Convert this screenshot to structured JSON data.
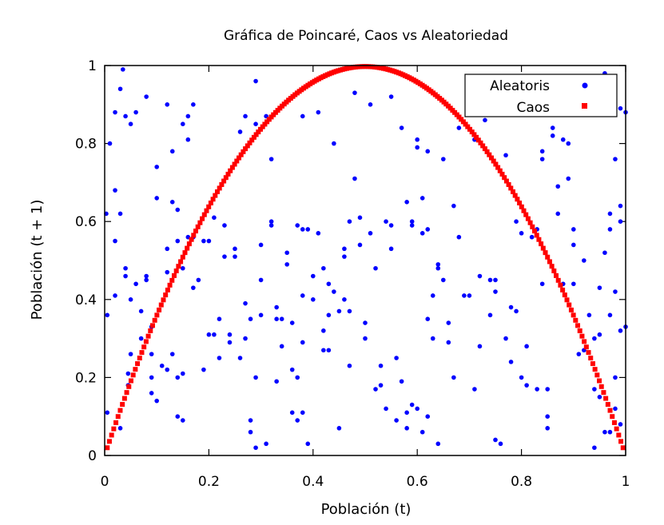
{
  "chart_data": {
    "type": "scatter",
    "title": "Gráfica de Poincaré, Caos vs Aleatoriedad",
    "xlabel": "Población (t)",
    "ylabel": "Población (t + 1)",
    "xlim": [
      0,
      1
    ],
    "ylim": [
      0,
      1
    ],
    "x_ticks": [
      "0",
      "0.2",
      "0.4",
      "0.6",
      "0.8",
      "1"
    ],
    "y_ticks": [
      "0",
      "0.2",
      "0.4",
      "0.6",
      "0.8",
      "1"
    ],
    "grid": false,
    "legend_position": "top-right",
    "series": [
      {
        "name": "Aleatoris",
        "color": "#0000ff",
        "marker": "circle",
        "points": [
          [
            0.003,
            0.62
          ],
          [
            0.005,
            0.36
          ],
          [
            0.005,
            0.11
          ],
          [
            0.01,
            0.8
          ],
          [
            0.02,
            0.88
          ],
          [
            0.02,
            0.68
          ],
          [
            0.02,
            0.55
          ],
          [
            0.02,
            0.41
          ],
          [
            0.03,
            0.94
          ],
          [
            0.03,
            0.62
          ],
          [
            0.03,
            0.07
          ],
          [
            0.035,
            0.99
          ],
          [
            0.04,
            0.87
          ],
          [
            0.04,
            0.48
          ],
          [
            0.04,
            0.46
          ],
          [
            0.045,
            0.18
          ],
          [
            0.045,
            0.21
          ],
          [
            0.05,
            0.26
          ],
          [
            0.05,
            0.85
          ],
          [
            0.05,
            0.4
          ],
          [
            0.06,
            0.44
          ],
          [
            0.06,
            0.88
          ],
          [
            0.07,
            0.37
          ],
          [
            0.07,
            0.3
          ],
          [
            0.08,
            0.92
          ],
          [
            0.08,
            0.46
          ],
          [
            0.08,
            0.45
          ],
          [
            0.09,
            0.2
          ],
          [
            0.09,
            0.26
          ],
          [
            0.09,
            0.16
          ],
          [
            0.09,
            0.33
          ],
          [
            0.1,
            0.66
          ],
          [
            0.1,
            0.74
          ],
          [
            0.1,
            0.14
          ],
          [
            0.11,
            0.23
          ],
          [
            0.12,
            0.47
          ],
          [
            0.12,
            0.53
          ],
          [
            0.12,
            0.9
          ],
          [
            0.12,
            0.22
          ],
          [
            0.13,
            0.65
          ],
          [
            0.13,
            0.78
          ],
          [
            0.13,
            0.26
          ],
          [
            0.14,
            0.63
          ],
          [
            0.14,
            0.55
          ],
          [
            0.14,
            0.2
          ],
          [
            0.14,
            0.1
          ],
          [
            0.15,
            0.85
          ],
          [
            0.15,
            0.48
          ],
          [
            0.15,
            0.09
          ],
          [
            0.15,
            0.21
          ],
          [
            0.16,
            0.87
          ],
          [
            0.16,
            0.81
          ],
          [
            0.16,
            0.56
          ],
          [
            0.17,
            0.9
          ],
          [
            0.17,
            0.56
          ],
          [
            0.17,
            0.43
          ],
          [
            0.18,
            0.45
          ],
          [
            0.19,
            0.55
          ],
          [
            0.19,
            0.22
          ],
          [
            0.2,
            0.55
          ],
          [
            0.2,
            0.31
          ],
          [
            0.21,
            0.61
          ],
          [
            0.21,
            0.31
          ],
          [
            0.22,
            0.35
          ],
          [
            0.22,
            0.25
          ],
          [
            0.23,
            0.59
          ],
          [
            0.23,
            0.51
          ],
          [
            0.24,
            0.31
          ],
          [
            0.24,
            0.29
          ],
          [
            0.25,
            0.53
          ],
          [
            0.25,
            0.51
          ],
          [
            0.26,
            0.83
          ],
          [
            0.26,
            0.25
          ],
          [
            0.27,
            0.39
          ],
          [
            0.27,
            0.3
          ],
          [
            0.27,
            0.87
          ],
          [
            0.28,
            0.06
          ],
          [
            0.28,
            0.09
          ],
          [
            0.28,
            0.35
          ],
          [
            0.29,
            0.85
          ],
          [
            0.29,
            0.96
          ],
          [
            0.29,
            0.2
          ],
          [
            0.29,
            0.02
          ],
          [
            0.3,
            0.36
          ],
          [
            0.3,
            0.45
          ],
          [
            0.3,
            0.54
          ],
          [
            0.31,
            0.87
          ],
          [
            0.31,
            0.03
          ],
          [
            0.32,
            0.59
          ],
          [
            0.32,
            0.6
          ],
          [
            0.32,
            0.76
          ],
          [
            0.33,
            0.19
          ],
          [
            0.33,
            0.35
          ],
          [
            0.33,
            0.38
          ],
          [
            0.34,
            0.35
          ],
          [
            0.34,
            0.28
          ],
          [
            0.35,
            0.52
          ],
          [
            0.35,
            0.49
          ],
          [
            0.36,
            0.11
          ],
          [
            0.36,
            0.34
          ],
          [
            0.36,
            0.22
          ],
          [
            0.37,
            0.59
          ],
          [
            0.37,
            0.2
          ],
          [
            0.37,
            0.09
          ],
          [
            0.38,
            0.41
          ],
          [
            0.38,
            0.29
          ],
          [
            0.38,
            0.58
          ],
          [
            0.38,
            0.87
          ],
          [
            0.38,
            0.11
          ],
          [
            0.39,
            0.03
          ],
          [
            0.39,
            0.58
          ],
          [
            0.4,
            0.4
          ],
          [
            0.4,
            0.46
          ],
          [
            0.41,
            0.57
          ],
          [
            0.41,
            0.88
          ],
          [
            0.42,
            0.32
          ],
          [
            0.42,
            0.48
          ],
          [
            0.42,
            0.27
          ],
          [
            0.43,
            0.27
          ],
          [
            0.43,
            0.44
          ],
          [
            0.43,
            0.36
          ],
          [
            0.44,
            0.8
          ],
          [
            0.44,
            0.42
          ],
          [
            0.45,
            0.37
          ],
          [
            0.45,
            0.07
          ],
          [
            0.46,
            0.53
          ],
          [
            0.46,
            0.51
          ],
          [
            0.46,
            0.4
          ],
          [
            0.47,
            0.6
          ],
          [
            0.47,
            0.37
          ],
          [
            0.47,
            0.23
          ],
          [
            0.48,
            0.93
          ],
          [
            0.48,
            0.71
          ],
          [
            0.49,
            0.61
          ],
          [
            0.49,
            0.54
          ],
          [
            0.5,
            0.34
          ],
          [
            0.5,
            0.3
          ],
          [
            0.51,
            0.9
          ],
          [
            0.51,
            0.57
          ],
          [
            0.52,
            0.48
          ],
          [
            0.52,
            0.17
          ],
          [
            0.53,
            0.18
          ],
          [
            0.53,
            0.23
          ],
          [
            0.54,
            0.6
          ],
          [
            0.54,
            0.12
          ],
          [
            0.55,
            0.92
          ],
          [
            0.55,
            0.59
          ],
          [
            0.55,
            0.53
          ],
          [
            0.56,
            0.25
          ],
          [
            0.56,
            0.09
          ],
          [
            0.57,
            0.84
          ],
          [
            0.57,
            0.19
          ],
          [
            0.58,
            0.11
          ],
          [
            0.58,
            0.07
          ],
          [
            0.58,
            0.65
          ],
          [
            0.59,
            0.6
          ],
          [
            0.59,
            0.59
          ],
          [
            0.59,
            0.13
          ],
          [
            0.6,
            0.79
          ],
          [
            0.6,
            0.81
          ],
          [
            0.6,
            0.12
          ],
          [
            0.61,
            0.66
          ],
          [
            0.61,
            0.57
          ],
          [
            0.61,
            0.06
          ],
          [
            0.62,
            0.78
          ],
          [
            0.62,
            0.58
          ],
          [
            0.62,
            0.35
          ],
          [
            0.62,
            0.1
          ],
          [
            0.63,
            0.3
          ],
          [
            0.63,
            0.41
          ],
          [
            0.64,
            0.48
          ],
          [
            0.64,
            0.49
          ],
          [
            0.64,
            0.03
          ],
          [
            0.65,
            0.76
          ],
          [
            0.65,
            0.45
          ],
          [
            0.66,
            0.29
          ],
          [
            0.66,
            0.34
          ],
          [
            0.67,
            0.64
          ],
          [
            0.67,
            0.2
          ],
          [
            0.68,
            0.56
          ],
          [
            0.68,
            0.84
          ],
          [
            0.69,
            0.41
          ],
          [
            0.7,
            0.91
          ],
          [
            0.7,
            0.41
          ],
          [
            0.71,
            0.17
          ],
          [
            0.71,
            0.81
          ],
          [
            0.72,
            0.46
          ],
          [
            0.72,
            0.28
          ],
          [
            0.73,
            0.93
          ],
          [
            0.73,
            0.86
          ],
          [
            0.74,
            0.45
          ],
          [
            0.74,
            0.36
          ],
          [
            0.75,
            0.45
          ],
          [
            0.75,
            0.42
          ],
          [
            0.75,
            0.04
          ],
          [
            0.76,
            0.03
          ],
          [
            0.77,
            0.77
          ],
          [
            0.77,
            0.3
          ],
          [
            0.78,
            0.24
          ],
          [
            0.78,
            0.38
          ],
          [
            0.79,
            0.6
          ],
          [
            0.79,
            0.37
          ],
          [
            0.8,
            0.57
          ],
          [
            0.8,
            0.2
          ],
          [
            0.81,
            0.18
          ],
          [
            0.81,
            0.28
          ],
          [
            0.82,
            0.56
          ],
          [
            0.83,
            0.58
          ],
          [
            0.83,
            0.17
          ],
          [
            0.84,
            0.78
          ],
          [
            0.84,
            0.76
          ],
          [
            0.84,
            0.44
          ],
          [
            0.85,
            0.1
          ],
          [
            0.85,
            0.07
          ],
          [
            0.85,
            0.17
          ],
          [
            0.86,
            0.82
          ],
          [
            0.86,
            0.84
          ],
          [
            0.87,
            0.69
          ],
          [
            0.87,
            0.62
          ],
          [
            0.88,
            0.81
          ],
          [
            0.88,
            0.44
          ],
          [
            0.89,
            0.8
          ],
          [
            0.89,
            0.71
          ],
          [
            0.9,
            0.58
          ],
          [
            0.9,
            0.54
          ],
          [
            0.9,
            0.44
          ],
          [
            0.91,
            0.93
          ],
          [
            0.91,
            0.26
          ],
          [
            0.92,
            0.27
          ],
          [
            0.92,
            0.5
          ],
          [
            0.92,
            0.92
          ],
          [
            0.93,
            0.9
          ],
          [
            0.93,
            0.36
          ],
          [
            0.94,
            0.3
          ],
          [
            0.94,
            0.17
          ],
          [
            0.94,
            0.02
          ],
          [
            0.95,
            0.43
          ],
          [
            0.95,
            0.31
          ],
          [
            0.95,
            0.15
          ],
          [
            0.96,
            0.52
          ],
          [
            0.96,
            0.06
          ],
          [
            0.96,
            0.98
          ],
          [
            0.97,
            0.58
          ],
          [
            0.97,
            0.36
          ],
          [
            0.97,
            0.62
          ],
          [
            0.97,
            0.06
          ],
          [
            0.98,
            0.42
          ],
          [
            0.98,
            0.76
          ],
          [
            0.98,
            0.2
          ],
          [
            0.98,
            0.12
          ],
          [
            0.99,
            0.64
          ],
          [
            0.99,
            0.6
          ],
          [
            0.99,
            0.89
          ],
          [
            0.99,
            0.32
          ],
          [
            0.99,
            0.08
          ],
          [
            1.0,
            0.88
          ],
          [
            1.0,
            0.33
          ]
        ]
      },
      {
        "name": "Caos",
        "color": "#ff0000",
        "marker": "square",
        "function": "logistic",
        "r": 3.99,
        "x_start": 0.005,
        "x_end": 0.995,
        "count": 240
      }
    ]
  }
}
